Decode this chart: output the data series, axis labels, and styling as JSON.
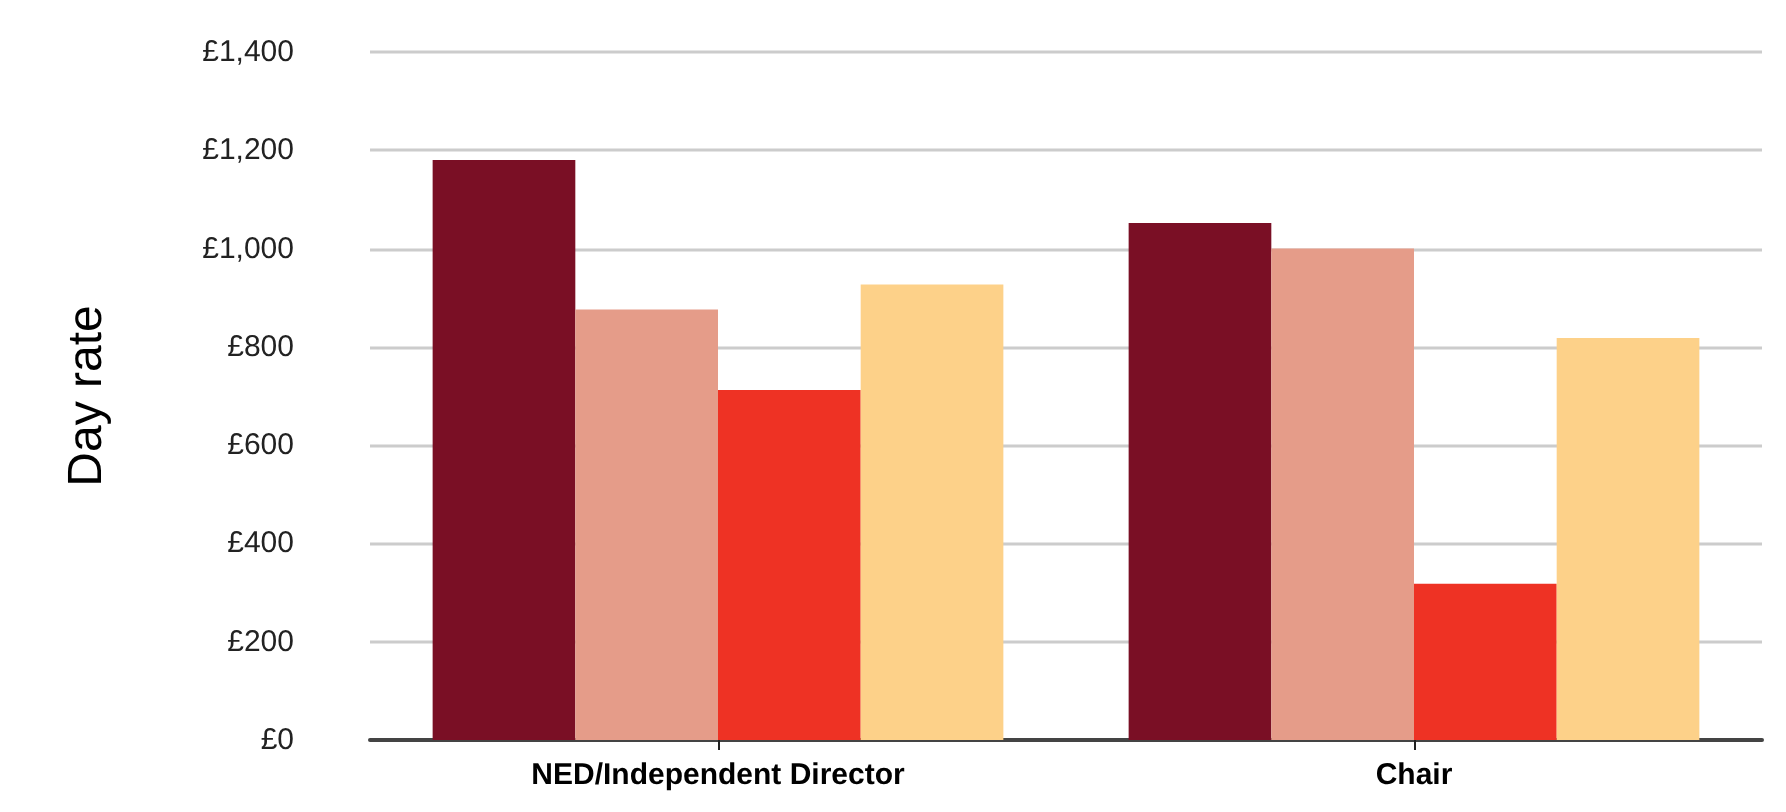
{
  "chart_data": {
    "type": "bar",
    "ylabel": "Day rate",
    "categories": [
      "NED/Independent Director",
      "Chair"
    ],
    "series": [
      {
        "color": "#7a0f25",
        "values": [
          1180,
          1052
        ]
      },
      {
        "color": "#e59c89",
        "values": [
          876,
          1000
        ]
      },
      {
        "color": "#ee3224",
        "values": [
          712,
          318
        ]
      },
      {
        "color": "#fdd189",
        "values": [
          927,
          818
        ]
      }
    ],
    "ylim": [
      0,
      1400
    ],
    "yticks": [
      {
        "value": 0,
        "label": "£0"
      },
      {
        "value": 200,
        "label": "£200"
      },
      {
        "value": 400,
        "label": "£400"
      },
      {
        "value": 600,
        "label": "£600"
      },
      {
        "value": 800,
        "label": "£800"
      },
      {
        "value": 1000,
        "label": "£1,000"
      },
      {
        "value": 1200,
        "label": "£1,200"
      },
      {
        "value": 1400,
        "label": "£1,400"
      }
    ],
    "grid": "y"
  }
}
